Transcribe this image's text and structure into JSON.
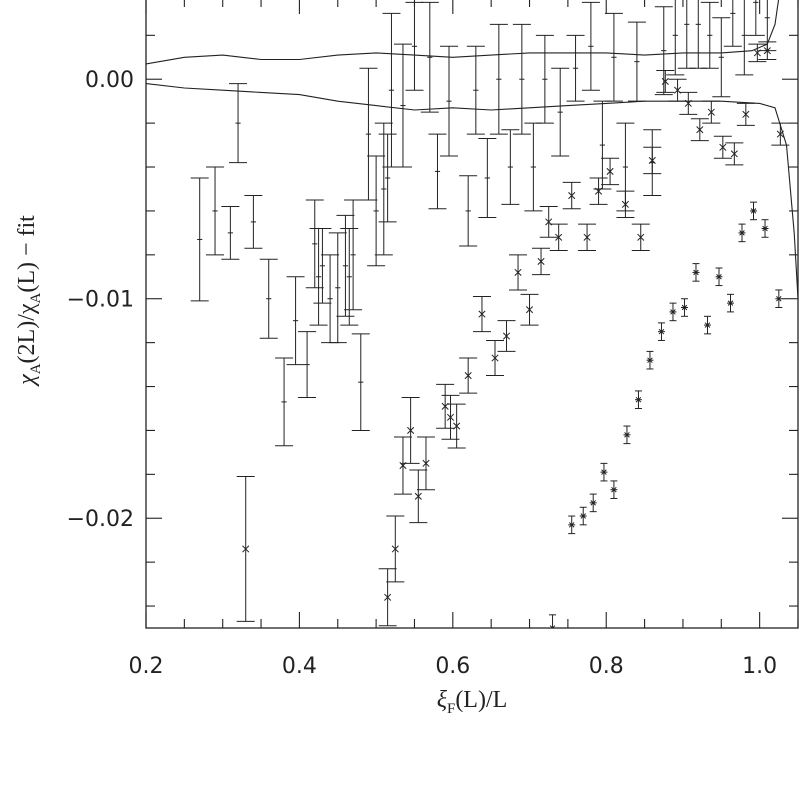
{
  "chart_data": {
    "type": "scatter",
    "title": "",
    "xlabel": {
      "main": "ξ",
      "sub": "F",
      "rest": "(L)/L"
    },
    "ylabel": {
      "p1": "χ",
      "s1": "A",
      "p2": "(2L)/χ",
      "s2": "A",
      "p3": "(L)  −  fit"
    },
    "xlim": [
      0.2,
      1.05
    ],
    "ylim": [
      -0.025,
      0.0037
    ],
    "x_ticks": [
      {
        "value": 0.2,
        "label": "0.2"
      },
      {
        "value": 0.4,
        "label": "0.4"
      },
      {
        "value": 0.6,
        "label": "0.6"
      },
      {
        "value": 0.8,
        "label": "0.8"
      },
      {
        "value": 1.0,
        "label": "1.0"
      }
    ],
    "y_ticks": [
      {
        "value": 0.0,
        "label": "0.00"
      },
      {
        "value": -0.01,
        "label": "−0.01"
      },
      {
        "value": -0.02,
        "label": "−0.02"
      }
    ],
    "grid": false,
    "legend": "none",
    "series": [
      {
        "marker": "plus-small",
        "points": [
          {
            "x": 0.27,
            "y": -0.0073,
            "e": 0.0028
          },
          {
            "x": 0.29,
            "y": -0.006,
            "e": 0.002
          },
          {
            "x": 0.31,
            "y": -0.007,
            "e": 0.0012
          },
          {
            "x": 0.32,
            "y": -0.002,
            "e": 0.0018
          },
          {
            "x": 0.34,
            "y": -0.0065,
            "e": 0.0012
          },
          {
            "x": 0.36,
            "y": -0.01,
            "e": 0.0018
          },
          {
            "x": 0.38,
            "y": -0.0147,
            "e": 0.002
          },
          {
            "x": 0.395,
            "y": -0.011,
            "e": 0.002
          },
          {
            "x": 0.41,
            "y": -0.013,
            "e": 0.0015
          },
          {
            "x": 0.42,
            "y": -0.0075,
            "e": 0.002
          },
          {
            "x": 0.425,
            "y": -0.009,
            "e": 0.0022
          },
          {
            "x": 0.43,
            "y": -0.0085,
            "e": 0.0017
          },
          {
            "x": 0.44,
            "y": -0.01,
            "e": 0.002
          },
          {
            "x": 0.45,
            "y": -0.0095,
            "e": 0.0025
          },
          {
            "x": 0.46,
            "y": -0.0085,
            "e": 0.0023
          },
          {
            "x": 0.465,
            "y": -0.009,
            "e": 0.0022
          },
          {
            "x": 0.47,
            "y": -0.008,
            "e": 0.0025
          },
          {
            "x": 0.48,
            "y": -0.0138,
            "e": 0.0022
          },
          {
            "x": 0.49,
            "y": -0.0025,
            "e": 0.003
          },
          {
            "x": 0.5,
            "y": -0.006,
            "e": 0.0025
          },
          {
            "x": 0.51,
            "y": -0.005,
            "e": 0.003
          },
          {
            "x": 0.515,
            "y": -0.0045,
            "e": 0.002
          },
          {
            "x": 0.52,
            "y": -0.0005,
            "e": 0.0035
          },
          {
            "x": 0.535,
            "y": -0.0012,
            "e": 0.0028
          },
          {
            "x": 0.55,
            "y": 0.0015,
            "e": 0.002
          },
          {
            "x": 0.57,
            "y": 0.001,
            "e": 0.0025
          },
          {
            "x": 0.58,
            "y": -0.0042,
            "e": 0.0017
          },
          {
            "x": 0.595,
            "y": -0.001,
            "e": 0.0025
          },
          {
            "x": 0.62,
            "y": -0.006,
            "e": 0.0016
          },
          {
            "x": 0.63,
            "y": -0.0005,
            "e": 0.002
          },
          {
            "x": 0.645,
            "y": -0.0045,
            "e": 0.0018
          },
          {
            "x": 0.66,
            "y": 0.0,
            "e": 0.0025
          },
          {
            "x": 0.675,
            "y": -0.004,
            "e": 0.0017
          },
          {
            "x": 0.69,
            "y": 0.0,
            "e": 0.0025
          },
          {
            "x": 0.705,
            "y": -0.004,
            "e": 0.002
          },
          {
            "x": 0.72,
            "y": 0.0,
            "e": 0.002
          },
          {
            "x": 0.74,
            "y": -0.0015,
            "e": 0.002
          },
          {
            "x": 0.76,
            "y": 0.0005,
            "e": 0.0015
          },
          {
            "x": 0.78,
            "y": 0.0015,
            "e": 0.002
          },
          {
            "x": 0.795,
            "y": -0.003,
            "e": 0.002
          },
          {
            "x": 0.81,
            "y": 0.001,
            "e": 0.002
          },
          {
            "x": 0.825,
            "y": -0.004,
            "e": 0.002
          },
          {
            "x": 0.84,
            "y": 0.0008,
            "e": 0.0018
          },
          {
            "x": 0.86,
            "y": -0.0038,
            "e": 0.0015
          },
          {
            "x": 0.875,
            "y": 0.0013,
            "e": 0.002
          },
          {
            "x": 0.89,
            "y": 0.002,
            "e": 0.0018
          },
          {
            "x": 0.905,
            "y": 0.0025,
            "e": 0.002
          },
          {
            "x": 0.92,
            "y": 0.0025,
            "e": 0.002
          },
          {
            "x": 0.935,
            "y": 0.002,
            "e": 0.0015
          },
          {
            "x": 0.95,
            "y": 0.001,
            "e": 0.0018
          },
          {
            "x": 0.965,
            "y": 0.003,
            "e": 0.0015
          },
          {
            "x": 0.98,
            "y": 0.002,
            "e": 0.0018
          },
          {
            "x": 0.995,
            "y": 0.0035,
            "e": 0.0015
          },
          {
            "x": 1.01,
            "y": 0.0028,
            "e": 0.0015
          }
        ]
      },
      {
        "marker": "cross",
        "points": [
          {
            "x": 0.33,
            "y": -0.0214,
            "e": 0.0033
          },
          {
            "x": 0.515,
            "y": -0.0236,
            "e": 0.0013
          },
          {
            "x": 0.525,
            "y": -0.0214,
            "e": 0.0015
          },
          {
            "x": 0.535,
            "y": -0.0176,
            "e": 0.0013
          },
          {
            "x": 0.545,
            "y": -0.016,
            "e": 0.0015
          },
          {
            "x": 0.555,
            "y": -0.019,
            "e": 0.0012
          },
          {
            "x": 0.565,
            "y": -0.0175,
            "e": 0.0012
          },
          {
            "x": 0.59,
            "y": -0.0149,
            "e": 0.001
          },
          {
            "x": 0.597,
            "y": -0.0154,
            "e": 0.001
          },
          {
            "x": 0.605,
            "y": -0.0158,
            "e": 0.001
          },
          {
            "x": 0.62,
            "y": -0.0135,
            "e": 0.0008
          },
          {
            "x": 0.638,
            "y": -0.0107,
            "e": 0.0008
          },
          {
            "x": 0.655,
            "y": -0.0127,
            "e": 0.0008
          },
          {
            "x": 0.67,
            "y": -0.0117,
            "e": 0.0007
          },
          {
            "x": 0.685,
            "y": -0.0088,
            "e": 0.0008
          },
          {
            "x": 0.7,
            "y": -0.0105,
            "e": 0.0007
          },
          {
            "x": 0.715,
            "y": -0.0083,
            "e": 0.0006
          },
          {
            "x": 0.725,
            "y": -0.0065,
            "e": 0.0007
          },
          {
            "x": 0.738,
            "y": -0.0072,
            "e": 0.0006
          },
          {
            "x": 0.755,
            "y": -0.0053,
            "e": 0.0006
          },
          {
            "x": 0.775,
            "y": -0.0072,
            "e": 0.0006
          },
          {
            "x": 0.79,
            "y": -0.0051,
            "e": 0.0006
          },
          {
            "x": 0.805,
            "y": -0.0042,
            "e": 0.0006
          },
          {
            "x": 0.825,
            "y": -0.0057,
            "e": 0.0006
          },
          {
            "x": 0.845,
            "y": -0.0072,
            "e": 0.0006
          },
          {
            "x": 0.86,
            "y": -0.0037,
            "e": 0.0006
          },
          {
            "x": 0.877,
            "y": -0.0001,
            "e": 0.0005
          },
          {
            "x": 0.893,
            "y": -0.0005,
            "e": 0.0005
          },
          {
            "x": 0.907,
            "y": -0.0011,
            "e": 0.0005
          },
          {
            "x": 0.922,
            "y": -0.0023,
            "e": 0.0005
          },
          {
            "x": 0.937,
            "y": -0.0015,
            "e": 0.0005
          },
          {
            "x": 0.952,
            "y": -0.0031,
            "e": 0.0005
          },
          {
            "x": 0.967,
            "y": -0.0034,
            "e": 0.0005
          },
          {
            "x": 0.982,
            "y": -0.0016,
            "e": 0.0005
          },
          {
            "x": 0.997,
            "y": 0.0012,
            "e": 0.0004
          },
          {
            "x": 1.01,
            "y": 0.0013,
            "e": 0.0004
          },
          {
            "x": 1.027,
            "y": -0.0025,
            "e": 0.0005
          }
        ]
      },
      {
        "marker": "cross-small",
        "points": [
          {
            "x": 0.73,
            "y": -0.025,
            "e": 0.0006
          },
          {
            "x": 0.755,
            "y": -0.0203,
            "e": 0.0004
          },
          {
            "x": 0.77,
            "y": -0.0199,
            "e": 0.0004
          },
          {
            "x": 0.783,
            "y": -0.0193,
            "e": 0.0004
          },
          {
            "x": 0.797,
            "y": -0.0179,
            "e": 0.0004
          },
          {
            "x": 0.81,
            "y": -0.0187,
            "e": 0.0004
          },
          {
            "x": 0.827,
            "y": -0.0162,
            "e": 0.0004
          },
          {
            "x": 0.842,
            "y": -0.0146,
            "e": 0.0004
          },
          {
            "x": 0.857,
            "y": -0.0128,
            "e": 0.0004
          },
          {
            "x": 0.872,
            "y": -0.0115,
            "e": 0.0004
          },
          {
            "x": 0.887,
            "y": -0.0106,
            "e": 0.0004
          },
          {
            "x": 0.902,
            "y": -0.0104,
            "e": 0.0004
          },
          {
            "x": 0.917,
            "y": -0.0088,
            "e": 0.0004
          },
          {
            "x": 0.932,
            "y": -0.0112,
            "e": 0.0004
          },
          {
            "x": 0.947,
            "y": -0.009,
            "e": 0.0004
          },
          {
            "x": 0.962,
            "y": -0.0102,
            "e": 0.0004
          },
          {
            "x": 0.977,
            "y": -0.007,
            "e": 0.0004
          },
          {
            "x": 0.992,
            "y": -0.006,
            "e": 0.0004
          },
          {
            "x": 1.007,
            "y": -0.0068,
            "e": 0.0004
          },
          {
            "x": 1.025,
            "y": -0.01,
            "e": 0.0004
          }
        ]
      }
    ],
    "curves": [
      {
        "points": [
          [
            0.2,
            0.0007
          ],
          [
            0.25,
            0.001
          ],
          [
            0.3,
            0.0011
          ],
          [
            0.35,
            0.0009
          ],
          [
            0.4,
            0.0009
          ],
          [
            0.45,
            0.0011
          ],
          [
            0.5,
            0.0012
          ],
          [
            0.55,
            0.0011
          ],
          [
            0.6,
            0.001
          ],
          [
            0.65,
            0.0011
          ],
          [
            0.7,
            0.0012
          ],
          [
            0.75,
            0.0012
          ],
          [
            0.8,
            0.0012
          ],
          [
            0.85,
            0.0011
          ],
          [
            0.9,
            0.0012
          ],
          [
            0.95,
            0.0012
          ],
          [
            0.99,
            0.0013
          ],
          [
            1.01,
            0.0016
          ],
          [
            1.02,
            0.0025
          ],
          [
            1.025,
            0.0037
          ]
        ]
      },
      {
        "points": [
          [
            0.2,
            -0.0002
          ],
          [
            0.25,
            -0.0004
          ],
          [
            0.3,
            -0.0005
          ],
          [
            0.35,
            -0.0006
          ],
          [
            0.4,
            -0.0007
          ],
          [
            0.45,
            -0.001
          ],
          [
            0.5,
            -0.0012
          ],
          [
            0.55,
            -0.0014
          ],
          [
            0.6,
            -0.0013
          ],
          [
            0.65,
            -0.0014
          ],
          [
            0.7,
            -0.0013
          ],
          [
            0.75,
            -0.0012
          ],
          [
            0.8,
            -0.0011
          ],
          [
            0.85,
            -0.001
          ],
          [
            0.9,
            -0.001
          ],
          [
            0.95,
            -0.001
          ],
          [
            1.0,
            -0.0011
          ],
          [
            1.02,
            -0.0013
          ],
          [
            1.035,
            -0.003
          ],
          [
            1.045,
            -0.007
          ],
          [
            1.05,
            -0.01
          ]
        ]
      }
    ]
  }
}
